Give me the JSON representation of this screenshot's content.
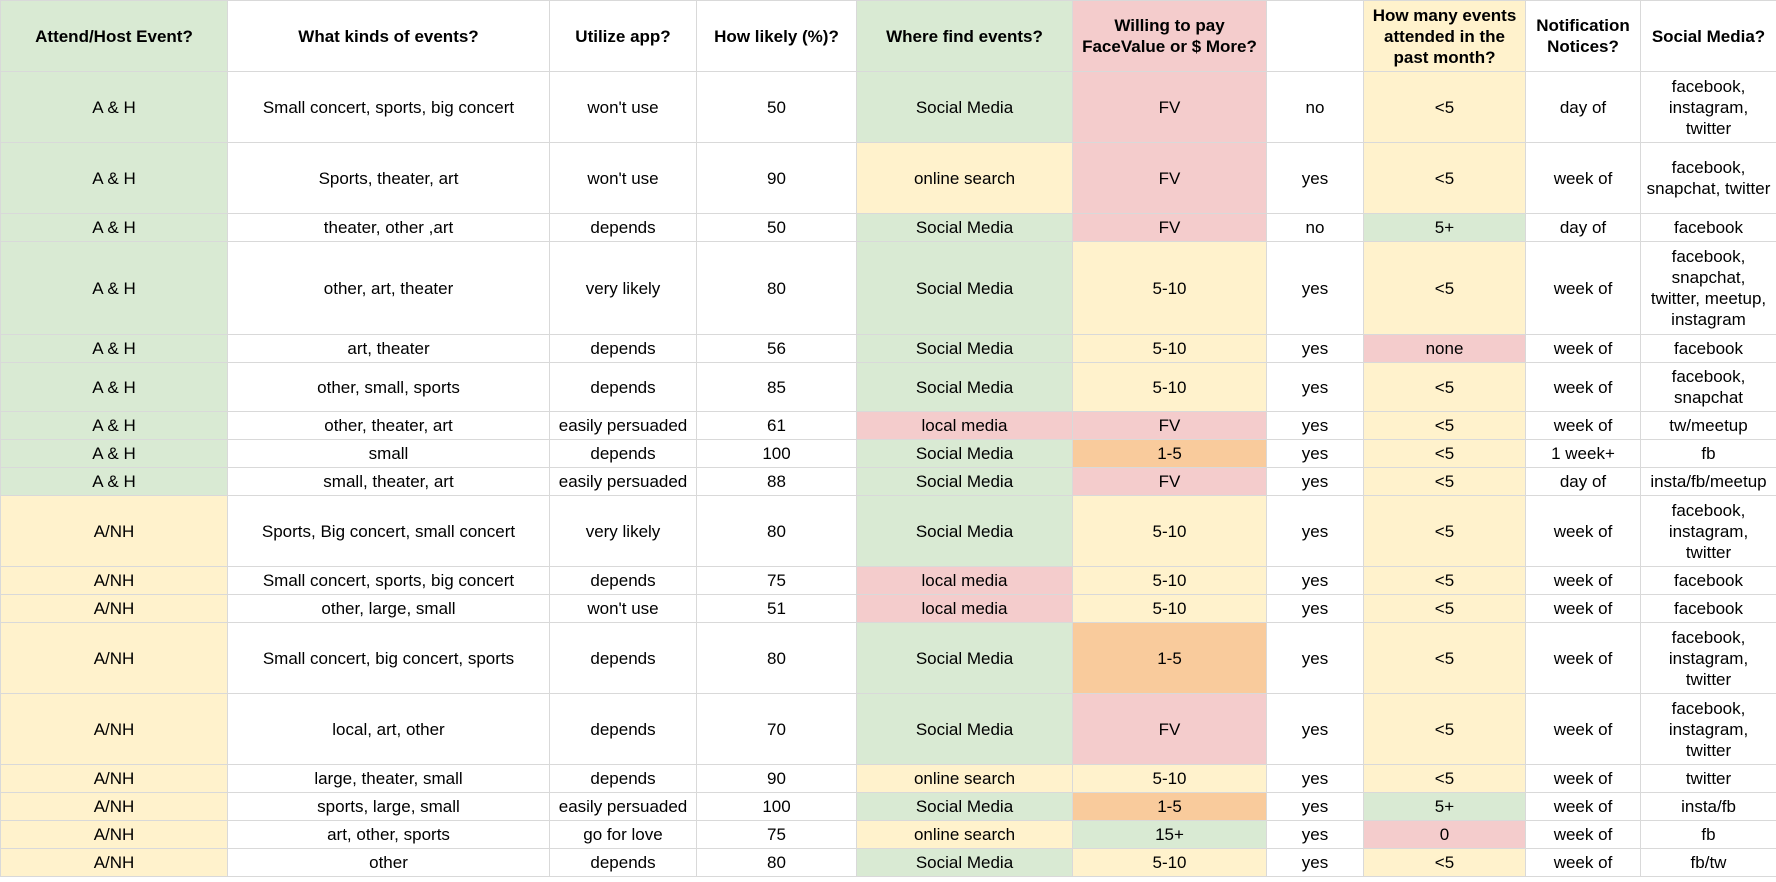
{
  "colors": {
    "green": "#d9ead3",
    "yellow": "#fff2cc",
    "red": "#f4cccc",
    "orange": "#f9cb9c",
    "white": "#ffffff",
    "grid": "#d9d9d9"
  },
  "headers": [
    {
      "label": "Attend/Host Event?",
      "bg": "green"
    },
    {
      "label": "What kinds of events?",
      "bg": "white"
    },
    {
      "label": "Utilize app?",
      "bg": "white"
    },
    {
      "label": "How likely (%)?",
      "bg": "white"
    },
    {
      "label": "Where find events?",
      "bg": "green"
    },
    {
      "label": "Willing to pay FaceValue or $ More?",
      "bg": "red"
    },
    {
      "label": "",
      "bg": "white"
    },
    {
      "label": "How many events attended in the past month?",
      "bg": "yellow"
    },
    {
      "label": "Notification Notices?",
      "bg": "white"
    },
    {
      "label": "Social Media?",
      "bg": "white"
    }
  ],
  "rows": [
    {
      "cells": [
        "A & H",
        "Small concert, sports, big concert",
        "won't use",
        "50",
        "Social Media",
        "FV",
        "no",
        "<5",
        "day of",
        "facebook, instagram, twitter"
      ],
      "bg": [
        "green",
        "white",
        "white",
        "white",
        "green",
        "red",
        "white",
        "yellow",
        "white",
        "white"
      ]
    },
    {
      "cells": [
        "A & H",
        "Sports, theater, art",
        "won't use",
        "90",
        "online search",
        "FV",
        "yes",
        "<5",
        "week of",
        "facebook, snapchat, twitter"
      ],
      "bg": [
        "green",
        "white",
        "white",
        "white",
        "yellow",
        "red",
        "white",
        "yellow",
        "white",
        "white"
      ]
    },
    {
      "cells": [
        "A & H",
        "theater, other ,art",
        "depends",
        "50",
        "Social Media",
        "FV",
        "no",
        "5+",
        "day of",
        "facebook"
      ],
      "bg": [
        "green",
        "white",
        "white",
        "white",
        "green",
        "red",
        "white",
        "green",
        "white",
        "white"
      ]
    },
    {
      "cells": [
        "A & H",
        "other, art, theater",
        "very likely",
        "80",
        "Social Media",
        "5-10",
        "yes",
        "<5",
        "week of",
        "facebook, snapchat, twitter, meetup, instagram"
      ],
      "bg": [
        "green",
        "white",
        "white",
        "white",
        "green",
        "yellow",
        "white",
        "yellow",
        "white",
        "white"
      ]
    },
    {
      "cells": [
        "A & H",
        "art, theater",
        "depends",
        "56",
        "Social Media",
        "5-10",
        "yes",
        "none",
        "week of",
        "facebook"
      ],
      "bg": [
        "green",
        "white",
        "white",
        "white",
        "green",
        "yellow",
        "white",
        "red",
        "white",
        "white"
      ]
    },
    {
      "cells": [
        "A & H",
        "other, small, sports",
        "depends",
        "85",
        "Social Media",
        "5-10",
        "yes",
        "<5",
        "week of",
        "facebook, snapchat"
      ],
      "bg": [
        "green",
        "white",
        "white",
        "white",
        "green",
        "yellow",
        "white",
        "yellow",
        "white",
        "white"
      ]
    },
    {
      "cells": [
        "A & H",
        "other, theater, art",
        "easily persuaded",
        "61",
        "local media",
        "FV",
        "yes",
        "<5",
        "week of",
        "tw/meetup"
      ],
      "bg": [
        "green",
        "white",
        "white",
        "white",
        "red",
        "red",
        "white",
        "yellow",
        "white",
        "white"
      ]
    },
    {
      "cells": [
        "A & H",
        "small",
        "depends",
        "100",
        "Social Media",
        "1-5",
        "yes",
        "<5",
        "1 week+",
        "fb"
      ],
      "bg": [
        "green",
        "white",
        "white",
        "white",
        "green",
        "orange",
        "white",
        "yellow",
        "white",
        "white"
      ]
    },
    {
      "cells": [
        "A & H",
        "small, theater, art",
        "easily persuaded",
        "88",
        "Social Media",
        "FV",
        "yes",
        "<5",
        "day of",
        "insta/fb/meetup"
      ],
      "bg": [
        "green",
        "white",
        "white",
        "white",
        "green",
        "red",
        "white",
        "yellow",
        "white",
        "white"
      ]
    },
    {
      "cells": [
        "A/NH",
        "Sports, Big concert, small concert",
        "very likely",
        "80",
        "Social Media",
        "5-10",
        "yes",
        "<5",
        "week of",
        "facebook, instagram, twitter"
      ],
      "bg": [
        "yellow",
        "white",
        "white",
        "white",
        "green",
        "yellow",
        "white",
        "yellow",
        "white",
        "white"
      ]
    },
    {
      "cells": [
        "A/NH",
        "Small concert, sports, big concert",
        "depends",
        "75",
        "local media",
        "5-10",
        "yes",
        "<5",
        "week of",
        "facebook"
      ],
      "bg": [
        "yellow",
        "white",
        "white",
        "white",
        "red",
        "yellow",
        "white",
        "yellow",
        "white",
        "white"
      ]
    },
    {
      "cells": [
        "A/NH",
        "other, large, small",
        "won't use",
        "51",
        "local media",
        "5-10",
        "yes",
        "<5",
        "week of",
        "facebook"
      ],
      "bg": [
        "yellow",
        "white",
        "white",
        "white",
        "red",
        "yellow",
        "white",
        "yellow",
        "white",
        "white"
      ]
    },
    {
      "cells": [
        "A/NH",
        "Small concert, big concert, sports",
        "depends",
        "80",
        "Social Media",
        "1-5",
        "yes",
        "<5",
        "week of",
        "facebook, instagram, twitter"
      ],
      "bg": [
        "yellow",
        "white",
        "white",
        "white",
        "green",
        "orange",
        "white",
        "yellow",
        "white",
        "white"
      ]
    },
    {
      "cells": [
        "A/NH",
        "local, art, other",
        "depends",
        "70",
        "Social Media",
        "FV",
        "yes",
        "<5",
        "week of",
        "facebook, instagram, twitter"
      ],
      "bg": [
        "yellow",
        "white",
        "white",
        "white",
        "green",
        "red",
        "white",
        "yellow",
        "white",
        "white"
      ]
    },
    {
      "cells": [
        "A/NH",
        "large, theater, small",
        "depends",
        "90",
        "online search",
        "5-10",
        "yes",
        "<5",
        "week of",
        "twitter"
      ],
      "bg": [
        "yellow",
        "white",
        "white",
        "white",
        "yellow",
        "yellow",
        "white",
        "yellow",
        "white",
        "white"
      ]
    },
    {
      "cells": [
        "A/NH",
        "sports, large, small",
        "easily persuaded",
        "100",
        "Social Media",
        "1-5",
        "yes",
        "5+",
        "week of",
        "insta/fb"
      ],
      "bg": [
        "yellow",
        "white",
        "white",
        "white",
        "green",
        "orange",
        "white",
        "green",
        "white",
        "white"
      ]
    },
    {
      "cells": [
        "A/NH",
        "art, other, sports",
        "go for love",
        "75",
        "online search",
        "15+",
        "yes",
        "0",
        "week of",
        "fb"
      ],
      "bg": [
        "yellow",
        "white",
        "white",
        "white",
        "yellow",
        "green",
        "white",
        "red",
        "white",
        "white"
      ]
    },
    {
      "cells": [
        "A/NH",
        "other",
        "depends",
        "80",
        "Social Media",
        "5-10",
        "yes",
        "<5",
        "week of",
        "fb/tw"
      ],
      "bg": [
        "yellow",
        "white",
        "white",
        "white",
        "green",
        "yellow",
        "white",
        "yellow",
        "white",
        "white"
      ]
    }
  ]
}
